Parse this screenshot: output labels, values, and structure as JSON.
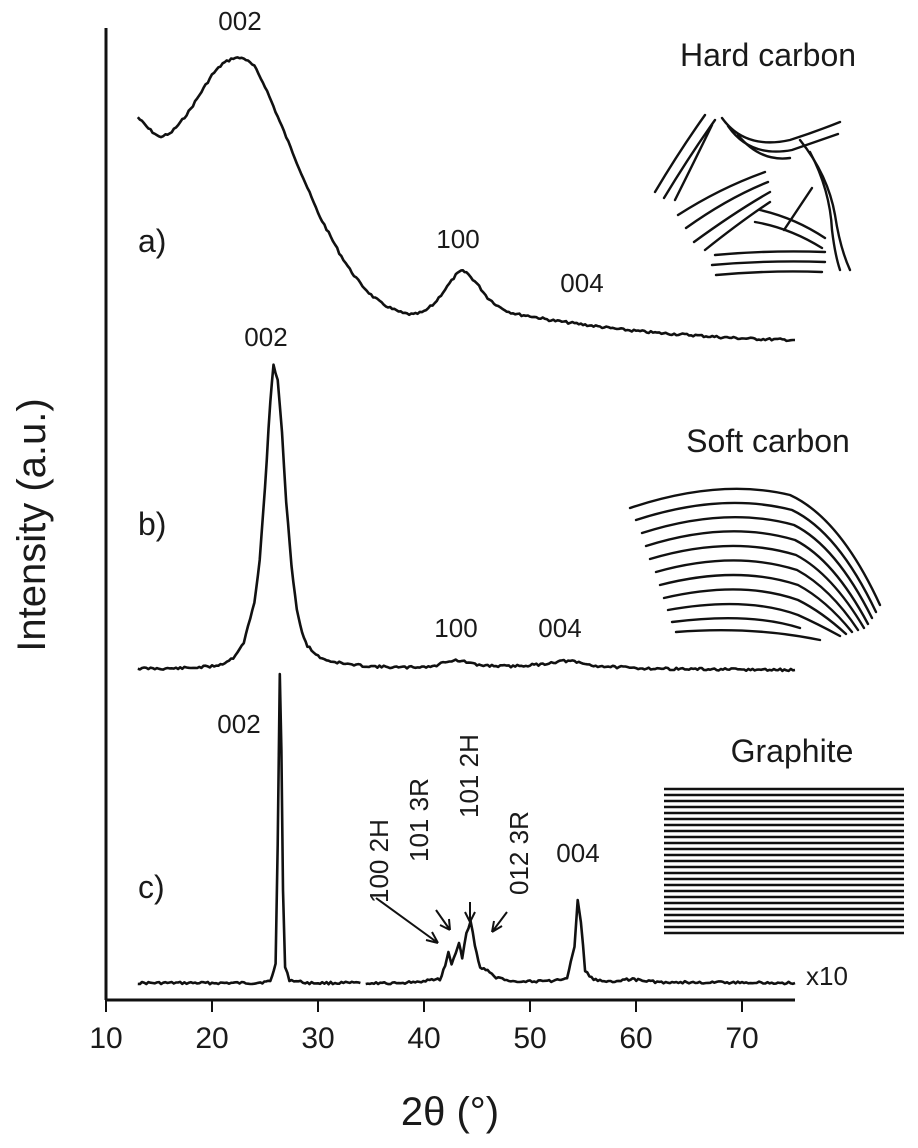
{
  "chart_data": {
    "type": "line",
    "xlabel": "2θ (°)",
    "ylabel": "Intensity (a.u.)",
    "xlim": [
      10,
      75
    ],
    "x_ticks": [
      10,
      20,
      30,
      40,
      50,
      60,
      70
    ],
    "y_ticks": [],
    "grid": false,
    "panels": [
      {
        "label": "a)",
        "structure": "Hard carbon",
        "baseline": 0,
        "points": [
          [
            13,
            0.79
          ],
          [
            14,
            0.75
          ],
          [
            15,
            0.72
          ],
          [
            16,
            0.73
          ],
          [
            17,
            0.77
          ],
          [
            18,
            0.82
          ],
          [
            19,
            0.88
          ],
          [
            20,
            0.94
          ],
          [
            21,
            0.98
          ],
          [
            22,
            1.0
          ],
          [
            23,
            1.0
          ],
          [
            24,
            0.97
          ],
          [
            25,
            0.9
          ],
          [
            26,
            0.81
          ],
          [
            27,
            0.72
          ],
          [
            28,
            0.63
          ],
          [
            29,
            0.54
          ],
          [
            30,
            0.45
          ],
          [
            31,
            0.38
          ],
          [
            32,
            0.31
          ],
          [
            33,
            0.25
          ],
          [
            34,
            0.2
          ],
          [
            35,
            0.16
          ],
          [
            36,
            0.13
          ],
          [
            37,
            0.11
          ],
          [
            38,
            0.095
          ],
          [
            39,
            0.09
          ],
          [
            40,
            0.1
          ],
          [
            41,
            0.13
          ],
          [
            42,
            0.18
          ],
          [
            43,
            0.23
          ],
          [
            43.5,
            0.245
          ],
          [
            44,
            0.24
          ],
          [
            45,
            0.2
          ],
          [
            46,
            0.15
          ],
          [
            47,
            0.12
          ],
          [
            48,
            0.1
          ],
          [
            49,
            0.09
          ],
          [
            50,
            0.085
          ],
          [
            52,
            0.07
          ],
          [
            54,
            0.06
          ],
          [
            56,
            0.05
          ],
          [
            58,
            0.04
          ],
          [
            60,
            0.032
          ],
          [
            62,
            0.025
          ],
          [
            65,
            0.018
          ],
          [
            68,
            0.01
          ],
          [
            70,
            0.006
          ],
          [
            72,
            0.003
          ],
          [
            75,
            0.0
          ]
        ],
        "peaks": [
          {
            "hkl": "002",
            "two_theta": 22.5
          },
          {
            "hkl": "100",
            "two_theta": 43.5
          },
          {
            "hkl": "004",
            "two_theta": 54
          }
        ]
      },
      {
        "label": "b)",
        "structure": "Soft carbon",
        "baseline": 0,
        "points": [
          [
            13,
            0.005
          ],
          [
            16,
            0.005
          ],
          [
            18,
            0.007
          ],
          [
            20,
            0.012
          ],
          [
            21,
            0.02
          ],
          [
            22,
            0.04
          ],
          [
            23,
            0.09
          ],
          [
            24,
            0.22
          ],
          [
            24.5,
            0.36
          ],
          [
            25,
            0.6
          ],
          [
            25.5,
            0.88
          ],
          [
            25.8,
            1.0
          ],
          [
            26.2,
            0.95
          ],
          [
            26.6,
            0.78
          ],
          [
            27,
            0.55
          ],
          [
            27.5,
            0.34
          ],
          [
            28,
            0.2
          ],
          [
            28.5,
            0.12
          ],
          [
            29,
            0.08
          ],
          [
            30,
            0.045
          ],
          [
            31,
            0.03
          ],
          [
            33,
            0.018
          ],
          [
            35,
            0.012
          ],
          [
            38,
            0.008
          ],
          [
            41,
            0.012
          ],
          [
            42,
            0.028
          ],
          [
            43,
            0.032
          ],
          [
            44,
            0.026
          ],
          [
            45,
            0.016
          ],
          [
            48,
            0.012
          ],
          [
            51,
            0.018
          ],
          [
            53,
            0.03
          ],
          [
            54,
            0.028
          ],
          [
            56,
            0.014
          ],
          [
            60,
            0.006
          ],
          [
            65,
            0.003
          ],
          [
            70,
            0.001
          ],
          [
            75,
            0.0
          ]
        ],
        "peaks": [
          {
            "hkl": "002",
            "two_theta": 26
          },
          {
            "hkl": "100",
            "two_theta": 43
          },
          {
            "hkl": "004",
            "two_theta": 53
          }
        ]
      },
      {
        "label": "c)",
        "structure": "Graphite",
        "baseline": 0,
        "scale_note": "x10",
        "segments": [
          [
            [
              13,
              0.0
            ],
            [
              20,
              0.0
            ],
            [
              24,
              0.0
            ],
            [
              25.5,
              0.005
            ],
            [
              26.0,
              0.06
            ],
            [
              26.2,
              0.45
            ],
            [
              26.4,
              1.0
            ],
            [
              26.55,
              0.75
            ],
            [
              26.7,
              0.3
            ],
            [
              26.9,
              0.05
            ],
            [
              27.3,
              0.01
            ],
            [
              29,
              0.0
            ],
            [
              34,
              0.0
            ]
          ],
          [
            [
              34.5,
              0.0
            ],
            [
              38,
              0.0
            ],
            [
              41.5,
              0.012
            ],
            [
              42.0,
              0.055
            ],
            [
              42.3,
              0.1
            ],
            [
              42.6,
              0.06
            ],
            [
              43.0,
              0.1
            ],
            [
              43.3,
              0.13
            ],
            [
              43.6,
              0.08
            ],
            [
              44.0,
              0.16
            ],
            [
              44.4,
              0.2
            ],
            [
              44.8,
              0.12
            ],
            [
              45.3,
              0.05
            ],
            [
              46.0,
              0.04
            ],
            [
              46.6,
              0.02
            ],
            [
              48,
              0.008
            ],
            [
              50,
              0.005
            ],
            [
              52,
              0.006
            ],
            [
              53.5,
              0.012
            ],
            [
              54.2,
              0.12
            ],
            [
              54.5,
              0.27
            ],
            [
              54.8,
              0.2
            ],
            [
              55.2,
              0.04
            ],
            [
              56,
              0.01
            ],
            [
              58,
              0.005
            ],
            [
              59.5,
              0.012
            ],
            [
              60.2,
              0.01
            ],
            [
              62,
              0.003
            ],
            [
              65,
              0.002
            ],
            [
              70,
              0.001
            ],
            [
              75,
              0.0
            ]
          ]
        ],
        "peaks": [
          {
            "hkl": "002",
            "two_theta": 26.4
          },
          {
            "hkl": "100 2H",
            "two_theta": 42.3
          },
          {
            "hkl": "101 3R",
            "two_theta": 43.3
          },
          {
            "hkl": "101 2H",
            "two_theta": 44.4
          },
          {
            "hkl": "012 3R",
            "two_theta": 46.0
          },
          {
            "hkl": "004",
            "two_theta": 54.5
          }
        ]
      }
    ]
  }
}
